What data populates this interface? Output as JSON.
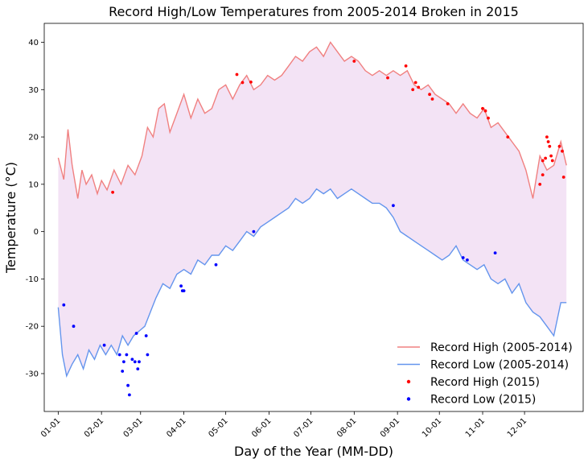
{
  "chart_data": {
    "type": "line",
    "title": "Record High/Low Temperatures from 2005-2014 Broken in 2015",
    "xlabel": "Day of the Year (MM-DD)",
    "ylabel": "Temperature (°C)",
    "xlim": [
      -10,
      376
    ],
    "ylim": [
      -38,
      44
    ],
    "x_ticks": [
      {
        "day": 0,
        "label": "01-01"
      },
      {
        "day": 31,
        "label": "02-01"
      },
      {
        "day": 59,
        "label": "03-01"
      },
      {
        "day": 90,
        "label": "04-01"
      },
      {
        "day": 120,
        "label": "05-01"
      },
      {
        "day": 151,
        "label": "06-01"
      },
      {
        "day": 181,
        "label": "07-01"
      },
      {
        "day": 212,
        "label": "08-01"
      },
      {
        "day": 243,
        "label": "09-01"
      },
      {
        "day": 273,
        "label": "10-01"
      },
      {
        "day": 304,
        "label": "11-01"
      },
      {
        "day": 334,
        "label": "12-01"
      }
    ],
    "y_ticks": [
      -30,
      -20,
      -10,
      0,
      10,
      20,
      30,
      40
    ],
    "legend": {
      "position": "lower-right",
      "entries": [
        {
          "label": "Record High (2005-2014)",
          "kind": "line",
          "color": "#f08080"
        },
        {
          "label": "Record Low (2005-2014)",
          "kind": "line",
          "color": "#6495ed"
        },
        {
          "label": "Record High (2015)",
          "kind": "marker",
          "color": "#ff0000"
        },
        {
          "label": "Record Low (2015)",
          "kind": "marker",
          "color": "#0000ff"
        }
      ]
    },
    "fill_color": "#f3e3f5",
    "series": [
      {
        "name": "Record High (2005-2014)",
        "color": "#f08080",
        "x": [
          0,
          4,
          7,
          10,
          14,
          17,
          20,
          24,
          28,
          31,
          35,
          40,
          45,
          50,
          55,
          60,
          64,
          68,
          72,
          76,
          80,
          85,
          90,
          95,
          100,
          105,
          110,
          115,
          120,
          125,
          130,
          135,
          140,
          145,
          150,
          155,
          160,
          165,
          170,
          175,
          180,
          185,
          190,
          195,
          200,
          205,
          210,
          215,
          220,
          225,
          230,
          235,
          240,
          245,
          250,
          255,
          260,
          265,
          270,
          275,
          280,
          285,
          290,
          295,
          300,
          305,
          310,
          315,
          320,
          325,
          330,
          335,
          340,
          345,
          350,
          355,
          360,
          364
        ],
        "values": [
          15.6,
          11,
          21.6,
          14,
          7,
          13,
          10,
          12,
          8,
          10.8,
          8.8,
          13,
          10,
          14,
          12,
          16,
          22,
          20,
          26,
          27,
          21,
          25,
          29,
          24,
          28,
          25,
          26,
          30,
          31,
          28,
          31,
          33,
          30,
          31,
          33,
          32,
          33,
          35,
          37,
          36,
          38,
          39,
          37,
          40,
          38,
          36,
          37,
          36,
          34,
          33,
          34,
          33,
          34,
          33,
          34,
          31,
          30,
          31,
          29,
          28,
          27,
          25,
          27,
          25,
          24,
          26,
          22,
          23,
          21,
          19,
          17,
          13,
          7,
          16,
          13,
          14,
          19,
          14
        ]
      },
      {
        "name": "Record Low (2005-2014)",
        "color": "#6495ed",
        "x": [
          0,
          3,
          6,
          10,
          14,
          18,
          22,
          26,
          30,
          34,
          38,
          42,
          46,
          50,
          54,
          58,
          62,
          66,
          70,
          75,
          80,
          85,
          90,
          95,
          100,
          105,
          110,
          115,
          120,
          125,
          130,
          135,
          140,
          145,
          150,
          155,
          160,
          165,
          170,
          175,
          180,
          185,
          190,
          195,
          200,
          205,
          210,
          215,
          220,
          225,
          230,
          235,
          240,
          245,
          250,
          255,
          260,
          265,
          270,
          275,
          280,
          285,
          290,
          295,
          300,
          305,
          310,
          315,
          320,
          325,
          330,
          335,
          340,
          345,
          350,
          355,
          360,
          364
        ],
        "values": [
          -16,
          -26,
          -30.5,
          -28,
          -26,
          -29,
          -25,
          -27,
          -24,
          -26,
          -24,
          -26,
          -22,
          -24,
          -22,
          -21,
          -20,
          -17,
          -14,
          -11,
          -12,
          -9,
          -8,
          -9,
          -6,
          -7,
          -5,
          -5,
          -3,
          -4,
          -2,
          0,
          -1,
          1,
          2,
          3,
          4,
          5,
          7,
          6,
          7,
          9,
          8,
          9,
          7,
          8,
          9,
          8,
          7,
          6,
          6,
          5,
          3,
          0,
          -1,
          -2,
          -3,
          -4,
          -5,
          -6,
          -5,
          -3,
          -6,
          -7,
          -8,
          -7,
          -10,
          -11,
          -10,
          -13,
          -11,
          -15,
          -17,
          -18,
          -20,
          -22,
          -15,
          -15
        ]
      }
    ],
    "scatter_series": [
      {
        "name": "Record High (2015)",
        "color": "#ff0000",
        "points": [
          [
            39,
            8.3
          ],
          [
            128,
            33.2
          ],
          [
            132,
            31.5
          ],
          [
            138,
            31.6
          ],
          [
            212,
            36
          ],
          [
            236,
            32.5
          ],
          [
            249,
            35
          ],
          [
            254,
            30
          ],
          [
            256,
            31.5
          ],
          [
            258,
            30.5
          ],
          [
            266,
            29
          ],
          [
            268,
            28
          ],
          [
            279,
            27
          ],
          [
            304,
            26
          ],
          [
            306,
            25.5
          ],
          [
            308,
            24
          ],
          [
            322,
            20
          ],
          [
            345,
            10
          ],
          [
            347,
            12
          ],
          [
            347,
            15
          ],
          [
            349,
            15.5
          ],
          [
            350,
            20
          ],
          [
            351,
            19
          ],
          [
            352,
            18
          ],
          [
            353,
            16
          ],
          [
            354,
            15
          ],
          [
            359,
            18
          ],
          [
            361,
            17
          ],
          [
            362,
            11.5
          ]
        ]
      },
      {
        "name": "Record Low (2015)",
        "color": "#0000ff",
        "points": [
          [
            4,
            -15.5
          ],
          [
            11,
            -20
          ],
          [
            33,
            -24
          ],
          [
            44,
            -26
          ],
          [
            46,
            -29.5
          ],
          [
            47,
            -27.5
          ],
          [
            49,
            -26
          ],
          [
            50,
            -32.5
          ],
          [
            51,
            -34.5
          ],
          [
            53,
            -27
          ],
          [
            55,
            -27.5
          ],
          [
            56,
            -21.5
          ],
          [
            57,
            -29
          ],
          [
            58,
            -27.5
          ],
          [
            63,
            -22
          ],
          [
            64,
            -26
          ],
          [
            88,
            -11.5
          ],
          [
            89,
            -12.5
          ],
          [
            90,
            -12.5
          ],
          [
            113,
            -7
          ],
          [
            140,
            0
          ],
          [
            240,
            5.5
          ],
          [
            290,
            -5.5
          ],
          [
            293,
            -6
          ],
          [
            313,
            -4.5
          ]
        ]
      }
    ]
  }
}
